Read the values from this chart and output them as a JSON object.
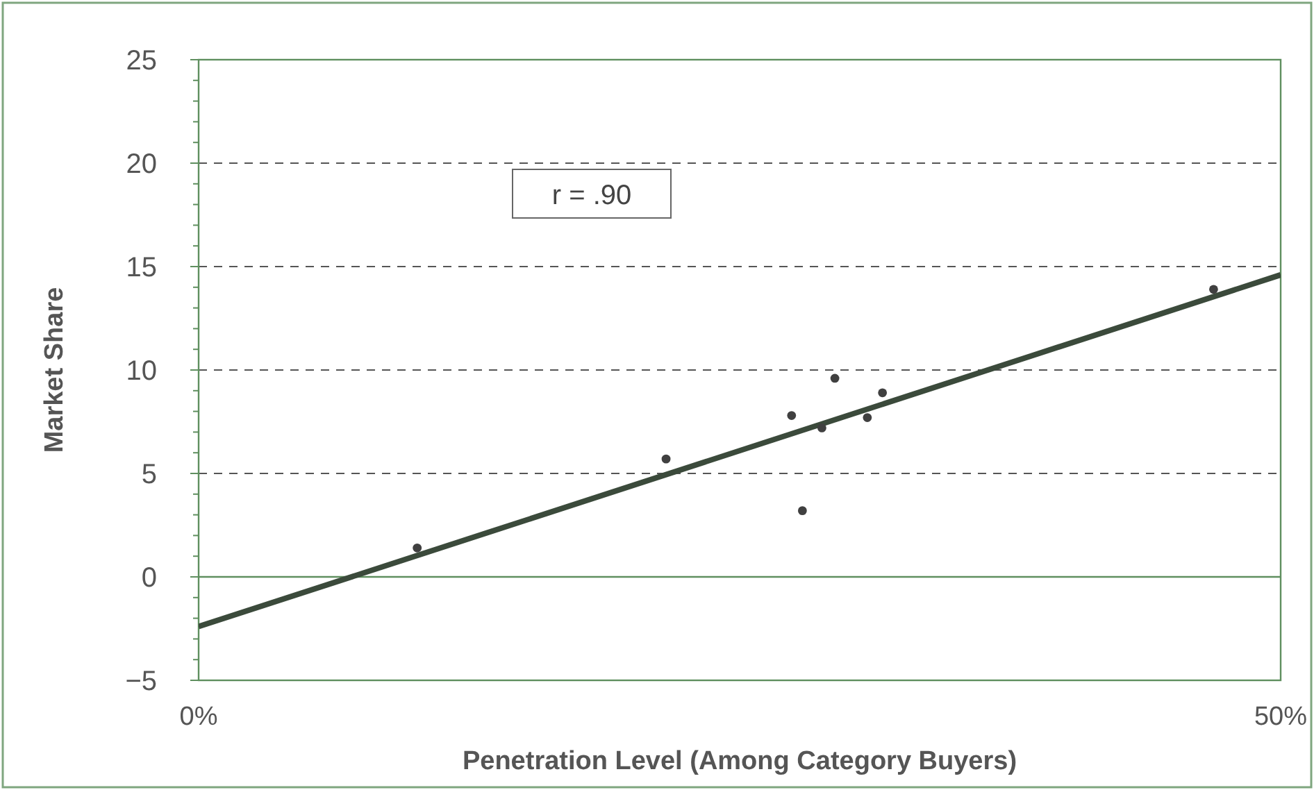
{
  "chart_data": {
    "type": "scatter",
    "xlabel": "Penetration Level (Among Category Buyers)",
    "ylabel": "Market Share",
    "annotations": [
      "r = .90"
    ],
    "series": [
      {
        "color": "#404040",
        "x": [
          10.1,
          21.6,
          27.4,
          27.9,
          28.8,
          29.4,
          30.9,
          31.6,
          46.9
        ],
        "values": [
          1.4,
          5.7,
          7.8,
          3.2,
          7.2,
          9.6,
          7.7,
          8.9,
          13.9
        ]
      },
      {
        "type": "line",
        "color": "#3b4a3b",
        "line_style": "solid",
        "marker": "none",
        "x": [
          0,
          50
        ],
        "values": [
          -2.4,
          14.6
        ]
      }
    ],
    "xlim": [
      0,
      50
    ],
    "xticks": [
      {
        "value": 0,
        "label": "0%"
      },
      {
        "value": 50,
        "label": "50%"
      }
    ],
    "ylim": [
      -5,
      25
    ],
    "yticks": [
      -5,
      {
        "value": -4,
        "label": null
      },
      {
        "value": -3,
        "label": null
      },
      {
        "value": -2,
        "label": null
      },
      {
        "value": -1,
        "label": null
      },
      0,
      {
        "value": 1,
        "label": null
      },
      {
        "value": 2,
        "label": null
      },
      {
        "value": 3,
        "label": null
      },
      {
        "value": 4,
        "label": null
      },
      5,
      {
        "value": 6,
        "label": null
      },
      {
        "value": 7,
        "label": null
      },
      {
        "value": 8,
        "label": null
      },
      {
        "value": 9,
        "label": null
      },
      10,
      {
        "value": 11,
        "label": null
      },
      {
        "value": 12,
        "label": null
      },
      {
        "value": 13,
        "label": null
      },
      {
        "value": 14,
        "label": null
      },
      15,
      {
        "value": 16,
        "label": null
      },
      {
        "value": 17,
        "label": null
      },
      {
        "value": 18,
        "label": null
      },
      {
        "value": 19,
        "label": null
      },
      20,
      {
        "value": 21,
        "label": null
      },
      {
        "value": 22,
        "label": null
      },
      {
        "value": 23,
        "label": null
      },
      {
        "value": 24,
        "label": null
      },
      25
    ],
    "grid": "y",
    "ref_lines": [
      {
        "axis": "y",
        "value": 0,
        "label": null,
        "color": "#5f8f5f",
        "line_style": "solid"
      }
    ],
    "marker": "circle"
  }
}
